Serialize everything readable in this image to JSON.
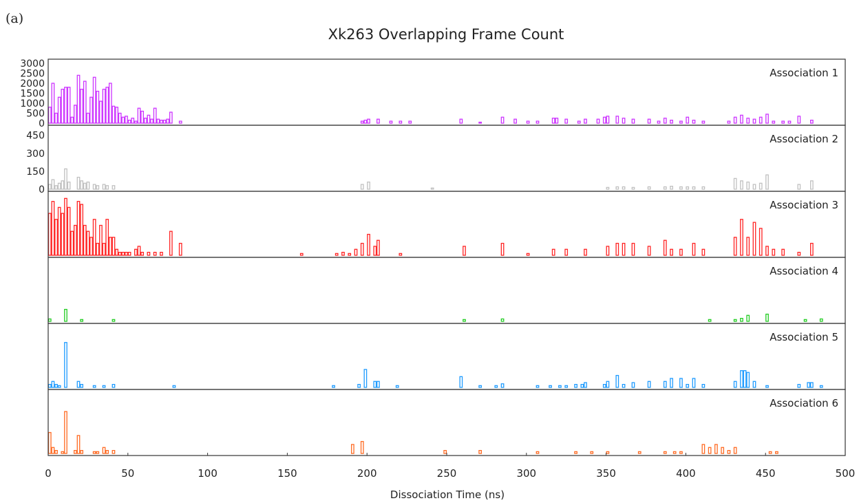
{
  "panel_label": "(a)",
  "chart_data": {
    "type": "bar",
    "title": "Xk263 Overlapping Frame Count",
    "xlabel": "Dissociation Time (ns)",
    "ylabel": "",
    "xlim": [
      0,
      500
    ],
    "x_ticks": [
      0,
      50,
      100,
      150,
      200,
      250,
      300,
      350,
      400,
      450,
      500
    ],
    "grid": false,
    "bin_width": 2,
    "series": [
      {
        "name": "Association 1",
        "color": "#cc33ff",
        "ylim": [
          0,
          3000
        ],
        "y_ticks": [
          0,
          500,
          1000,
          1500,
          2000,
          2500,
          3000
        ],
        "bars": [
          [
            0,
            800
          ],
          [
            2,
            2000
          ],
          [
            4,
            500
          ],
          [
            6,
            1300
          ],
          [
            8,
            1700
          ],
          [
            10,
            1800
          ],
          [
            12,
            1800
          ],
          [
            14,
            300
          ],
          [
            16,
            900
          ],
          [
            18,
            2400
          ],
          [
            20,
            1700
          ],
          [
            22,
            2100
          ],
          [
            24,
            500
          ],
          [
            26,
            1300
          ],
          [
            28,
            2300
          ],
          [
            30,
            1600
          ],
          [
            32,
            1100
          ],
          [
            34,
            1700
          ],
          [
            36,
            1800
          ],
          [
            38,
            2000
          ],
          [
            40,
            850
          ],
          [
            42,
            800
          ],
          [
            44,
            500
          ],
          [
            46,
            300
          ],
          [
            48,
            350
          ],
          [
            50,
            150
          ],
          [
            52,
            250
          ],
          [
            54,
            100
          ],
          [
            56,
            750
          ],
          [
            58,
            600
          ],
          [
            60,
            250
          ],
          [
            62,
            400
          ],
          [
            64,
            200
          ],
          [
            66,
            750
          ],
          [
            68,
            200
          ],
          [
            70,
            150
          ],
          [
            72,
            150
          ],
          [
            74,
            200
          ],
          [
            76,
            550
          ],
          [
            82,
            100
          ],
          [
            196,
            100
          ],
          [
            198,
            150
          ],
          [
            200,
            200
          ],
          [
            206,
            200
          ],
          [
            214,
            100
          ],
          [
            220,
            100
          ],
          [
            226,
            100
          ],
          [
            258,
            200
          ],
          [
            270,
            50
          ],
          [
            284,
            300
          ],
          [
            292,
            200
          ],
          [
            300,
            100
          ],
          [
            306,
            100
          ],
          [
            316,
            250
          ],
          [
            318,
            250
          ],
          [
            324,
            200
          ],
          [
            332,
            100
          ],
          [
            336,
            200
          ],
          [
            344,
            200
          ],
          [
            348,
            300
          ],
          [
            350,
            350
          ],
          [
            356,
            350
          ],
          [
            360,
            250
          ],
          [
            366,
            200
          ],
          [
            376,
            200
          ],
          [
            382,
            100
          ],
          [
            386,
            250
          ],
          [
            390,
            150
          ],
          [
            396,
            100
          ],
          [
            400,
            300
          ],
          [
            404,
            150
          ],
          [
            410,
            100
          ],
          [
            426,
            100
          ],
          [
            430,
            300
          ],
          [
            434,
            400
          ],
          [
            438,
            250
          ],
          [
            442,
            200
          ],
          [
            446,
            300
          ],
          [
            450,
            450
          ],
          [
            454,
            100
          ],
          [
            460,
            100
          ],
          [
            464,
            100
          ],
          [
            470,
            350
          ],
          [
            478,
            150
          ]
        ]
      },
      {
        "name": "Association 2",
        "color": "#c0c0c0",
        "ylim": [
          0,
          500
        ],
        "y_ticks": [
          0,
          150,
          300,
          450
        ],
        "bars": [
          [
            0,
            40
          ],
          [
            2,
            80
          ],
          [
            4,
            30
          ],
          [
            6,
            50
          ],
          [
            8,
            70
          ],
          [
            10,
            170
          ],
          [
            12,
            60
          ],
          [
            18,
            100
          ],
          [
            20,
            70
          ],
          [
            22,
            50
          ],
          [
            24,
            60
          ],
          [
            28,
            40
          ],
          [
            30,
            30
          ],
          [
            34,
            40
          ],
          [
            36,
            30
          ],
          [
            40,
            30
          ],
          [
            196,
            40
          ],
          [
            200,
            60
          ],
          [
            240,
            10
          ],
          [
            350,
            15
          ],
          [
            356,
            20
          ],
          [
            360,
            20
          ],
          [
            366,
            15
          ],
          [
            376,
            20
          ],
          [
            386,
            20
          ],
          [
            390,
            25
          ],
          [
            396,
            20
          ],
          [
            400,
            20
          ],
          [
            404,
            20
          ],
          [
            410,
            20
          ],
          [
            430,
            90
          ],
          [
            434,
            70
          ],
          [
            438,
            60
          ],
          [
            442,
            40
          ],
          [
            446,
            50
          ],
          [
            450,
            120
          ],
          [
            470,
            40
          ],
          [
            478,
            70
          ]
        ]
      },
      {
        "name": "Association 3",
        "color": "#ff2222",
        "ylim": [
          0,
          100
        ],
        "y_ticks": [],
        "bars": [
          [
            0,
            70
          ],
          [
            2,
            90
          ],
          [
            4,
            60
          ],
          [
            6,
            80
          ],
          [
            8,
            70
          ],
          [
            10,
            95
          ],
          [
            12,
            80
          ],
          [
            14,
            40
          ],
          [
            16,
            50
          ],
          [
            18,
            90
          ],
          [
            20,
            85
          ],
          [
            22,
            50
          ],
          [
            24,
            40
          ],
          [
            26,
            30
          ],
          [
            28,
            60
          ],
          [
            30,
            20
          ],
          [
            32,
            50
          ],
          [
            34,
            20
          ],
          [
            36,
            60
          ],
          [
            38,
            30
          ],
          [
            40,
            30
          ],
          [
            42,
            10
          ],
          [
            44,
            5
          ],
          [
            46,
            5
          ],
          [
            48,
            5
          ],
          [
            50,
            5
          ],
          [
            54,
            10
          ],
          [
            56,
            15
          ],
          [
            58,
            5
          ],
          [
            62,
            5
          ],
          [
            66,
            5
          ],
          [
            70,
            5
          ],
          [
            76,
            40
          ],
          [
            82,
            20
          ],
          [
            158,
            3
          ],
          [
            180,
            3
          ],
          [
            184,
            5
          ],
          [
            188,
            3
          ],
          [
            192,
            10
          ],
          [
            196,
            20
          ],
          [
            200,
            35
          ],
          [
            204,
            15
          ],
          [
            206,
            25
          ],
          [
            220,
            3
          ],
          [
            260,
            15
          ],
          [
            284,
            20
          ],
          [
            300,
            3
          ],
          [
            316,
            10
          ],
          [
            324,
            10
          ],
          [
            336,
            10
          ],
          [
            350,
            15
          ],
          [
            356,
            20
          ],
          [
            360,
            20
          ],
          [
            366,
            20
          ],
          [
            376,
            15
          ],
          [
            386,
            25
          ],
          [
            390,
            10
          ],
          [
            396,
            10
          ],
          [
            404,
            20
          ],
          [
            410,
            10
          ],
          [
            430,
            30
          ],
          [
            434,
            60
          ],
          [
            438,
            30
          ],
          [
            442,
            55
          ],
          [
            446,
            45
          ],
          [
            450,
            15
          ],
          [
            454,
            10
          ],
          [
            460,
            10
          ],
          [
            470,
            5
          ],
          [
            478,
            20
          ]
        ]
      },
      {
        "name": "Association 4",
        "color": "#22cc22",
        "ylim": [
          0,
          100
        ],
        "y_ticks": [],
        "bars": [
          [
            0,
            4
          ],
          [
            10,
            20
          ],
          [
            20,
            3
          ],
          [
            40,
            3
          ],
          [
            260,
            3
          ],
          [
            284,
            4
          ],
          [
            414,
            3
          ],
          [
            430,
            3
          ],
          [
            434,
            5
          ],
          [
            438,
            10
          ],
          [
            450,
            12
          ],
          [
            474,
            3
          ],
          [
            484,
            4
          ]
        ]
      },
      {
        "name": "Association 5",
        "color": "#1e9bff",
        "ylim": [
          0,
          100
        ],
        "y_ticks": [],
        "bars": [
          [
            0,
            5
          ],
          [
            2,
            10
          ],
          [
            4,
            5
          ],
          [
            6,
            3
          ],
          [
            10,
            75
          ],
          [
            18,
            10
          ],
          [
            20,
            5
          ],
          [
            28,
            3
          ],
          [
            34,
            3
          ],
          [
            40,
            5
          ],
          [
            78,
            3
          ],
          [
            178,
            3
          ],
          [
            194,
            5
          ],
          [
            198,
            30
          ],
          [
            204,
            10
          ],
          [
            206,
            10
          ],
          [
            218,
            3
          ],
          [
            258,
            18
          ],
          [
            270,
            3
          ],
          [
            280,
            3
          ],
          [
            284,
            6
          ],
          [
            306,
            3
          ],
          [
            314,
            3
          ],
          [
            320,
            3
          ],
          [
            324,
            3
          ],
          [
            330,
            5
          ],
          [
            334,
            5
          ],
          [
            336,
            8
          ],
          [
            348,
            5
          ],
          [
            350,
            10
          ],
          [
            356,
            20
          ],
          [
            360,
            5
          ],
          [
            366,
            8
          ],
          [
            376,
            10
          ],
          [
            386,
            10
          ],
          [
            390,
            15
          ],
          [
            396,
            15
          ],
          [
            400,
            5
          ],
          [
            404,
            15
          ],
          [
            410,
            5
          ],
          [
            430,
            10
          ],
          [
            434,
            28
          ],
          [
            436,
            28
          ],
          [
            438,
            25
          ],
          [
            442,
            10
          ],
          [
            450,
            3
          ],
          [
            470,
            5
          ],
          [
            476,
            8
          ],
          [
            478,
            8
          ],
          [
            484,
            3
          ]
        ]
      },
      {
        "name": "Association 6",
        "color": "#ff6a22",
        "ylim": [
          0,
          100
        ],
        "y_ticks": [],
        "bars": [
          [
            0,
            35
          ],
          [
            2,
            10
          ],
          [
            4,
            5
          ],
          [
            8,
            3
          ],
          [
            10,
            70
          ],
          [
            16,
            5
          ],
          [
            18,
            30
          ],
          [
            20,
            5
          ],
          [
            28,
            3
          ],
          [
            30,
            3
          ],
          [
            34,
            10
          ],
          [
            36,
            5
          ],
          [
            40,
            5
          ],
          [
            190,
            15
          ],
          [
            196,
            20
          ],
          [
            248,
            5
          ],
          [
            270,
            5
          ],
          [
            306,
            3
          ],
          [
            330,
            3
          ],
          [
            340,
            3
          ],
          [
            350,
            3
          ],
          [
            370,
            3
          ],
          [
            386,
            3
          ],
          [
            392,
            3
          ],
          [
            396,
            3
          ],
          [
            410,
            15
          ],
          [
            414,
            10
          ],
          [
            418,
            15
          ],
          [
            422,
            10
          ],
          [
            426,
            5
          ],
          [
            430,
            10
          ],
          [
            452,
            3
          ],
          [
            456,
            3
          ]
        ]
      }
    ]
  }
}
